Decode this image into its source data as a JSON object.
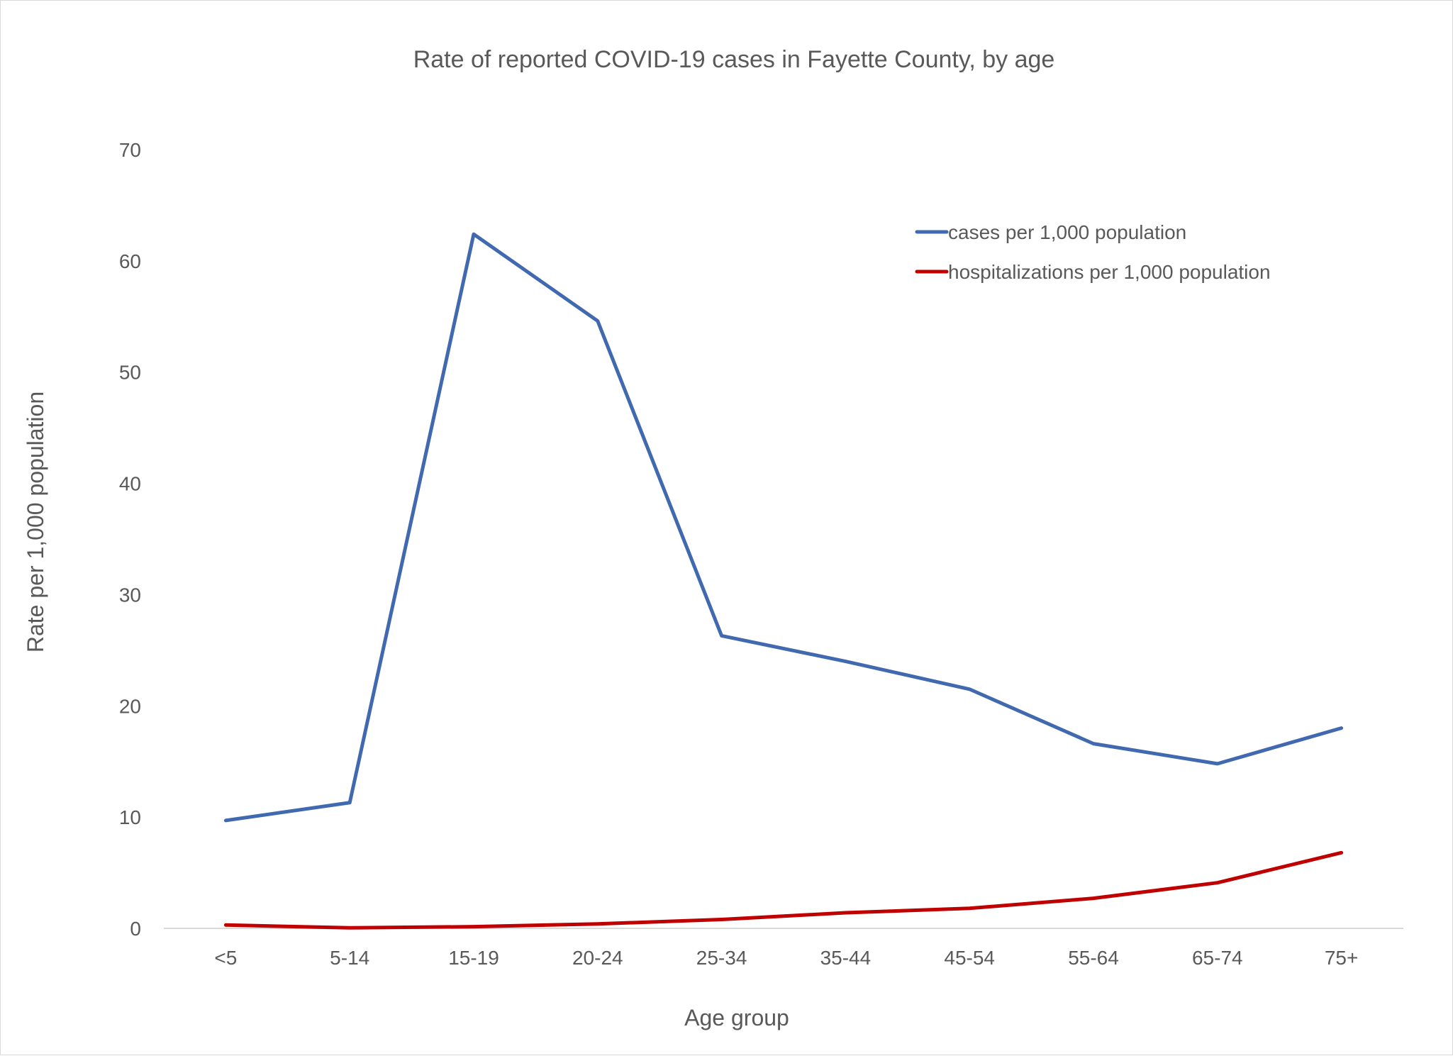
{
  "chart_data": {
    "type": "line",
    "title": "Rate of reported COVID-19 cases in Fayette County, by age",
    "xlabel": "Age group",
    "ylabel": "Rate per 1,000 population",
    "categories": [
      "<5",
      "5-14",
      "15-19",
      "20-24",
      "25-34",
      "35-44",
      "45-54",
      "55-64",
      "65-74",
      "75+"
    ],
    "ylim": [
      0,
      70
    ],
    "yticks": [
      "0",
      "10",
      "20",
      "30",
      "40",
      "50",
      "60",
      "70"
    ],
    "grid": false,
    "legend_position": "top-right",
    "series": [
      {
        "name": "cases per 1,000 population",
        "color": "#4169b0",
        "values": [
          9.7,
          11.3,
          62.4,
          54.6,
          26.3,
          24.0,
          21.5,
          16.6,
          14.8,
          18.0
        ]
      },
      {
        "name": "hospitalizations per 1,000 population",
        "color": "#c00000",
        "values": [
          0.3,
          0.05,
          0.15,
          0.4,
          0.8,
          1.4,
          1.8,
          2.7,
          4.1,
          6.8
        ]
      }
    ]
  }
}
